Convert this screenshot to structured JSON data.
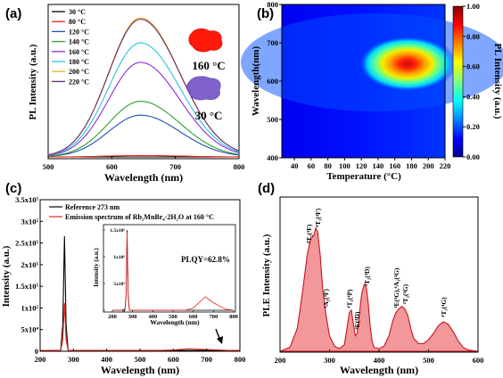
{
  "panels": {
    "a": {
      "letter": "(a)",
      "xlabel": "Wavelength (nm)",
      "ylabel": "PL Intensity (a.u.)",
      "xticks": [
        "500",
        "600",
        "700",
        "800"
      ],
      "annot_hot": "160 °C",
      "annot_cold": "30 °C",
      "legend_title_colors": {
        "hot": "#e8231a",
        "cold": "#7b5fc2"
      }
    },
    "b": {
      "letter": "(b)",
      "xlabel": "Temperature (°C)",
      "ylabel": "Wavelength(nm)",
      "cbar_label": "PL Intensity (a.u.)",
      "xticks": [
        "40",
        "60",
        "80",
        "100",
        "120",
        "140",
        "160",
        "180",
        "200",
        "220"
      ],
      "yticks": [
        "400",
        "500",
        "600",
        "700",
        "800"
      ],
      "cticks": [
        "0.00",
        "0.20",
        "0.40",
        "0.60",
        "0.80",
        "1.00"
      ]
    },
    "c": {
      "letter": "(c)",
      "xlabel": "Wavelength (nm)",
      "ylabel": "Intensity (a.u.)",
      "xticks": [
        "200",
        "300",
        "400",
        "500",
        "600",
        "700",
        "800"
      ],
      "yticks": [
        "0",
        "5x10⁴",
        "1x10⁵",
        "1.5x10⁵",
        "2x10⁵",
        "2.5x10⁵",
        "3x10⁵",
        "3.5x10⁵"
      ],
      "legend": [
        "Reference 273 nm",
        "Emission spectrum of Rb₂MnBr₄·2H₂O  at 160 °C"
      ],
      "inset": {
        "plqy": "PLQY=62.8%",
        "xlabel": "Wavelength (nm)",
        "ylabel": "Intensity (a.u.)",
        "xticks": [
          "200",
          "300",
          "400",
          "500",
          "600",
          "700",
          "800"
        ],
        "yticks": [
          "0",
          "5x10⁵",
          "1x10⁶",
          "1.5x10⁶"
        ]
      }
    },
    "d": {
      "letter": "(d)",
      "xlabel": "Wavelength (nm)",
      "ylabel": "PLE Intensity (a.u.)",
      "xticks": [
        "200",
        "300",
        "400",
        "500",
        "600"
      ],
      "terms": [
        {
          "label": "⁴T₂(⁴F)",
          "x": 258
        },
        {
          "label": "⁴T₁(⁴F)",
          "x": 276
        },
        {
          "label": "⁴A₂(⁴F)",
          "x": 292
        },
        {
          "label": "⁴T₁(⁴P)",
          "x": 340
        },
        {
          "label": "⁴E(⁴D)",
          "x": 355
        },
        {
          "label": "⁴T₂(⁴D)",
          "x": 375
        },
        {
          "label": "⁴E(⁴G),⁴A₁(⁴G)",
          "x": 434
        },
        {
          "label": "⁴T₂(⁴G)",
          "x": 452
        },
        {
          "label": "⁴T₁(⁴G)",
          "x": 530
        }
      ]
    }
  },
  "chart_data": [
    {
      "panel": "a",
      "type": "line",
      "xlabel": "Wavelength (nm)",
      "ylabel": "PL Intensity (a.u.)",
      "xlim": [
        500,
        800
      ],
      "peak_nm": 645,
      "series": [
        {
          "name": "30 °C",
          "color": "#000000",
          "peak": 0.0
        },
        {
          "name": "80 °C",
          "color": "#e8231a",
          "peak": 0.01
        },
        {
          "name": "120 °C",
          "color": "#1f4fb8",
          "peak": 0.3
        },
        {
          "name": "140 °C",
          "color": "#2ca02c",
          "peak": 0.4
        },
        {
          "name": "160 °C",
          "color": "#8a2be2",
          "peak": 0.68
        },
        {
          "name": "180 °C",
          "color": "#29c5d6",
          "peak": 0.82
        },
        {
          "name": "200 °C",
          "color": "#e6b422",
          "peak": 1.0
        },
        {
          "name": "220 °C",
          "color": "#6a2c7a",
          "peak": 0.99
        }
      ]
    },
    {
      "panel": "b",
      "type": "heatmap",
      "xlabel": "Temperature (°C)",
      "ylabel": "Wavelength(nm)",
      "xlim": [
        25,
        220
      ],
      "ylim": [
        400,
        800
      ],
      "clim": [
        0,
        1
      ],
      "peak": {
        "temperature": 175,
        "wavelength": 645
      }
    },
    {
      "panel": "c",
      "type": "line",
      "xlabel": "Wavelength (nm)",
      "ylabel": "Intensity (a.u.)",
      "xlim": [
        200,
        800
      ],
      "ylim": [
        0,
        350000
      ],
      "series": [
        {
          "name": "Reference 273 nm",
          "color": "#000000",
          "x": [
            200,
            262,
            268,
            273,
            278,
            284,
            800
          ],
          "y": [
            0,
            0,
            60000,
            265000,
            60000,
            0,
            0
          ]
        },
        {
          "name": "Emission spectrum of Rb₂MnBr₄·2H₂O  at 160 °C",
          "color": "#e8231a",
          "x": [
            200,
            262,
            268,
            273,
            278,
            284,
            560,
            600,
            645,
            700,
            760,
            800
          ],
          "y": [
            0,
            0,
            25000,
            110000,
            25000,
            0,
            0,
            800,
            3500,
            1800,
            300,
            0
          ]
        }
      ],
      "inset": {
        "xlim": [
          200,
          800
        ],
        "ylim": [
          0,
          1500000
        ],
        "series": [
          {
            "name": "Reference 273 nm",
            "color": "#000000",
            "x": [
              200,
              262,
              268,
              273,
              278,
              284,
              800
            ],
            "y": [
              0,
              0,
              300000,
              1500000,
              300000,
              0,
              0
            ]
          },
          {
            "name": "Emission spectrum",
            "color": "#e8231a",
            "x": [
              200,
              262,
              268,
              273,
              278,
              284,
              560,
              600,
              645,
              660,
              700,
              760,
              800
            ],
            "y": [
              0,
              0,
              250000,
              1450000,
              250000,
              0,
              0,
              40000,
              200000,
              250000,
              140000,
              20000,
              0
            ]
          }
        ]
      }
    },
    {
      "panel": "d",
      "type": "area",
      "xlabel": "Wavelength (nm)",
      "ylabel": "PLE Intensity (a.u.)",
      "xlim": [
        200,
        600
      ],
      "ylim": [
        0,
        1.05
      ],
      "x": [
        200,
        220,
        235,
        245,
        255,
        262,
        268,
        272,
        276,
        281,
        286,
        292,
        300,
        310,
        320,
        330,
        336,
        340,
        344,
        348,
        352,
        356,
        360,
        365,
        370,
        374,
        378,
        382,
        386,
        390,
        400,
        410,
        420,
        428,
        434,
        440,
        446,
        452,
        458,
        464,
        470,
        480,
        490,
        500,
        510,
        520,
        530,
        540,
        550,
        560,
        570,
        580,
        600
      ],
      "y": [
        0,
        0.03,
        0.18,
        0.45,
        0.75,
        0.88,
        0.9,
        0.96,
        0.93,
        0.75,
        0.5,
        0.3,
        0.12,
        0.04,
        0.02,
        0.05,
        0.2,
        0.3,
        0.32,
        0.22,
        0.12,
        0.14,
        0.28,
        0.45,
        0.52,
        0.5,
        0.38,
        0.2,
        0.08,
        0.03,
        0.02,
        0.04,
        0.12,
        0.24,
        0.3,
        0.33,
        0.35,
        0.33,
        0.28,
        0.18,
        0.1,
        0.06,
        0.06,
        0.09,
        0.14,
        0.2,
        0.23,
        0.21,
        0.15,
        0.08,
        0.03,
        0.01,
        0
      ]
    }
  ]
}
